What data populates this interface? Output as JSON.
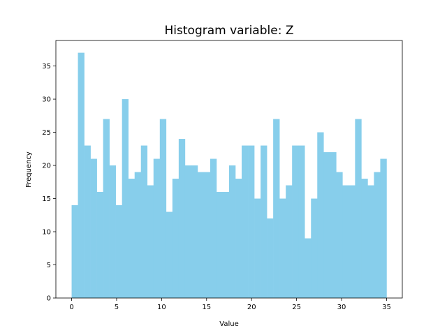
{
  "chart_data": {
    "type": "histogram",
    "title": "Histogram variable: Z",
    "xlabel": "Value",
    "ylabel": "Frequency",
    "bar_color": "#87CEEB",
    "xlim": [
      -1.75,
      36.75
    ],
    "ylim": [
      0,
      38.85
    ],
    "xticks": [
      0,
      5,
      10,
      15,
      20,
      25,
      30,
      35
    ],
    "yticks": [
      0,
      5,
      10,
      15,
      20,
      25,
      30,
      35
    ],
    "bin_start": 0,
    "bin_width": 0.7,
    "counts": [
      14,
      37,
      23,
      21,
      16,
      27,
      20,
      14,
      30,
      18,
      19,
      23,
      17,
      21,
      27,
      13,
      18,
      24,
      20,
      20,
      19,
      19,
      21,
      16,
      16,
      20,
      18,
      23,
      23,
      15,
      23,
      12,
      27,
      15,
      17,
      23,
      23,
      9,
      15,
      25,
      22,
      22,
      19,
      17,
      17,
      27,
      18,
      17,
      19,
      21
    ]
  }
}
